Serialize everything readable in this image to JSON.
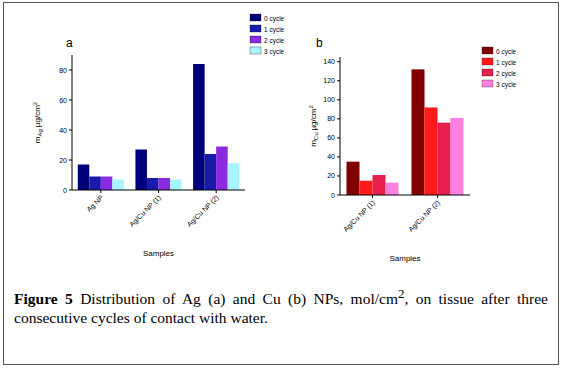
{
  "chart_data": [
    {
      "type": "bar",
      "title": "a",
      "x_label": "Samples",
      "y_label": {
        "text": "m",
        "sub": "Ag",
        "unit": "µg/cm",
        "sup": "2"
      },
      "categories": [
        "Ag NP",
        "Ag/Cu NP (1)",
        "Ag/Cu NP (2)"
      ],
      "series": [
        {
          "name": "0 cycle",
          "color": "#00007a",
          "values": [
            17,
            27,
            84
          ]
        },
        {
          "name": "1 cycle",
          "color": "#1a1aa8",
          "values": [
            9,
            8,
            24
          ]
        },
        {
          "name": "2 cycle",
          "color": "#8a2be2",
          "values": [
            9,
            8,
            29
          ]
        },
        {
          "name": "3 cycle",
          "color": "#a8f4ff",
          "values": [
            7,
            7,
            18
          ]
        }
      ],
      "ylim": [
        0,
        90
      ],
      "yticks": [
        0,
        20,
        40,
        60,
        80
      ],
      "grid": false,
      "legend": "upper right"
    },
    {
      "type": "bar",
      "title": "b",
      "x_label": "Samples",
      "y_label": {
        "text": "m",
        "sub": "Cu",
        "unit": "µg/cm",
        "sup": "2"
      },
      "categories": [
        "Ag/Cu NP (1)",
        "Ag/Cu NP (2)"
      ],
      "series": [
        {
          "name": "0 cycle",
          "color": "#800000",
          "values": [
            35,
            132
          ]
        },
        {
          "name": "1 cycle",
          "color": "#ff1a1a",
          "values": [
            15,
            92
          ]
        },
        {
          "name": "2 cycle",
          "color": "#e8204e",
          "values": [
            21,
            76
          ]
        },
        {
          "name": "3 cycle",
          "color": "#ff80e0",
          "values": [
            13,
            81
          ]
        }
      ],
      "ylim": [
        0,
        145
      ],
      "yticks": [
        0,
        20,
        40,
        60,
        80,
        100,
        120,
        140
      ],
      "grid": false,
      "legend": "upper right"
    }
  ],
  "caption": {
    "label": "Figure 5",
    "text": " Distribution of Ag (a) and Cu (b) NPs, mol/cm",
    "sup": "2",
    "text_after": ", on tissue after three consecutive cycles of contact with water."
  }
}
